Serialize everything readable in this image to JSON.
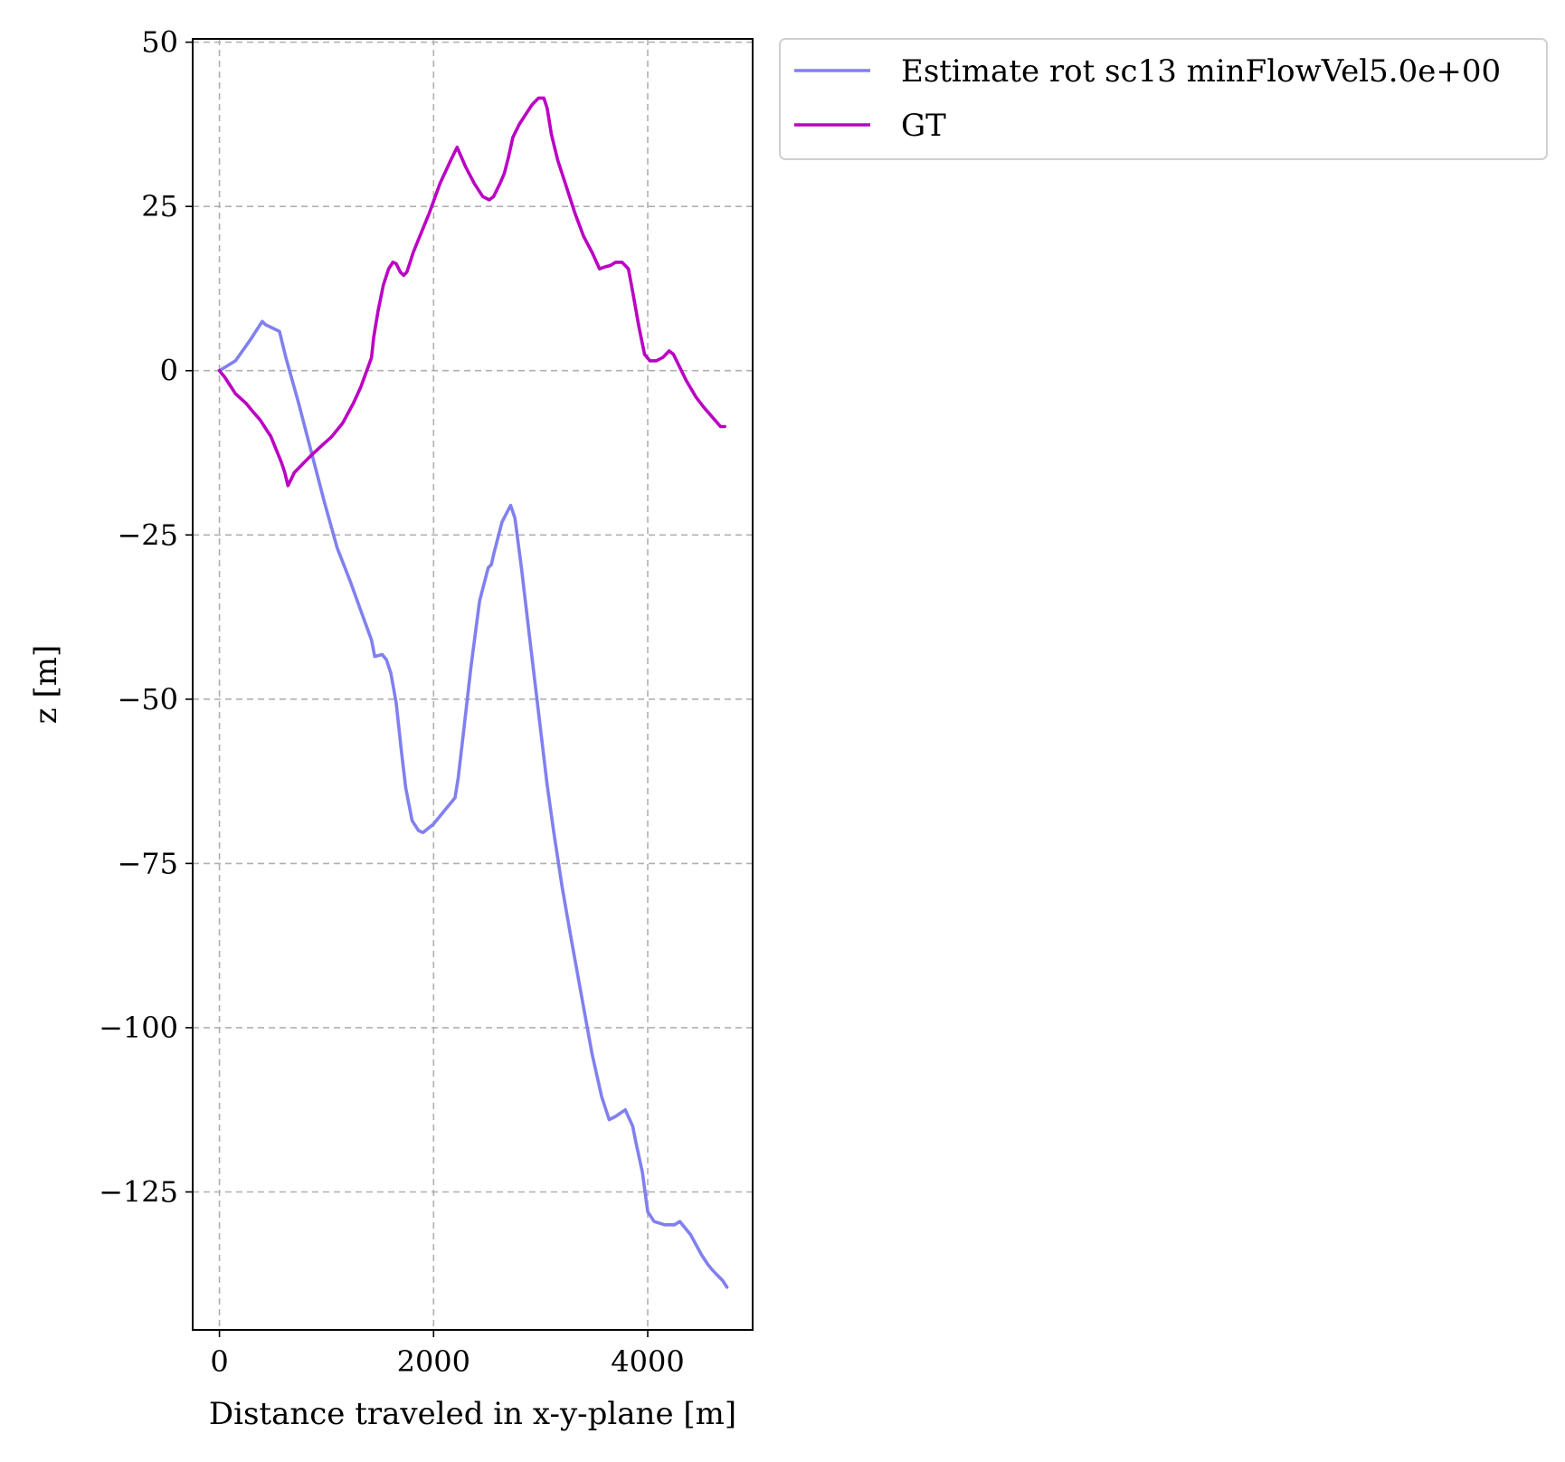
{
  "chart_data": {
    "type": "line",
    "xlabel": "Distance traveled in x-y-plane [m]",
    "ylabel": "z [m]",
    "xlim": [
      -250,
      4980
    ],
    "ylim": [
      -146,
      50.5
    ],
    "xticks": [
      0,
      2000,
      4000
    ],
    "xtick_labels": [
      "0",
      "2000",
      "4000"
    ],
    "yticks": [
      50,
      25,
      0,
      -25,
      -50,
      -75,
      -100,
      -125
    ],
    "ytick_labels": [
      "50",
      "25",
      "0",
      "−25",
      "−50",
      "−75",
      "−100",
      "−125"
    ],
    "grid": true,
    "legend_position": "outside-top-right",
    "series": [
      {
        "name": "Estimate rot sc13 minFlowVel5.0e+00",
        "color": "#8080f0",
        "x": [
          0,
          150,
          280,
          400,
          430,
          560,
          620,
          740,
          860,
          980,
          1100,
          1220,
          1320,
          1420,
          1450,
          1520,
          1560,
          1600,
          1650,
          1700,
          1740,
          1800,
          1860,
          1900,
          1940,
          2000,
          2100,
          2200,
          2230,
          2280,
          2350,
          2430,
          2510,
          2540,
          2560,
          2640,
          2720,
          2760,
          2820,
          2900,
          2980,
          3060,
          3120,
          3200,
          3280,
          3380,
          3480,
          3570,
          3640,
          3700,
          3790,
          3860,
          3890,
          3950,
          4000,
          4060,
          4160,
          4250,
          4300,
          4350,
          4400,
          4450,
          4500,
          4560,
          4600,
          4640,
          4700,
          4740
        ],
        "y": [
          0,
          1.5,
          4.5,
          7.5,
          7,
          6,
          2,
          -5,
          -12.5,
          -20,
          -27,
          -32,
          -36.5,
          -41,
          -43.5,
          -43.2,
          -44,
          -46,
          -50.5,
          -58,
          -63.5,
          -68.5,
          -70,
          -70.3,
          -69.8,
          -69,
          -67,
          -65,
          -62,
          -55,
          -45,
          -35,
          -30,
          -29.5,
          -28,
          -23,
          -20.5,
          -22.5,
          -30,
          -41,
          -52,
          -63,
          -70,
          -78.5,
          -86,
          -95,
          -104,
          -110.5,
          -114,
          -113.5,
          -112.5,
          -115,
          -117.5,
          -122,
          -128,
          -129.5,
          -130,
          -130,
          -129.5,
          -130.5,
          -131.5,
          -133,
          -134.5,
          -136,
          -136.8,
          -137.5,
          -138.5,
          -139.5
        ]
      },
      {
        "name": "GT",
        "color": "#bb00c4",
        "x": [
          0,
          50,
          150,
          250,
          300,
          380,
          420,
          480,
          530,
          580,
          610,
          640,
          670,
          700,
          760,
          850,
          950,
          1050,
          1150,
          1250,
          1320,
          1420,
          1440,
          1480,
          1530,
          1580,
          1620,
          1650,
          1690,
          1720,
          1750,
          1780,
          1810,
          1860,
          1960,
          2060,
          2160,
          2220,
          2300,
          2380,
          2460,
          2520,
          2560,
          2620,
          2660,
          2700,
          2740,
          2800,
          2860,
          2920,
          2980,
          3030,
          3060,
          3100,
          3160,
          3240,
          3320,
          3400,
          3480,
          3550,
          3600,
          3650,
          3700,
          3760,
          3820,
          3860,
          3920,
          3970,
          4020,
          4080,
          4140,
          4200,
          4240,
          4300,
          4360,
          4450,
          4520,
          4600,
          4680,
          4720
        ],
        "y": [
          0,
          -1,
          -3.5,
          -5,
          -6,
          -7.5,
          -8.5,
          -10,
          -12,
          -14,
          -15.5,
          -17.5,
          -16.5,
          -15.5,
          -14.5,
          -13,
          -11.5,
          -10,
          -8,
          -5,
          -2.5,
          2,
          5,
          9,
          13,
          15.5,
          16.5,
          16.3,
          15,
          14.5,
          15,
          16.5,
          18,
          20,
          24,
          28.5,
          32,
          34,
          31,
          28.5,
          26.5,
          26,
          26.5,
          28.5,
          30,
          32.5,
          35.5,
          37.5,
          39,
          40.5,
          41.5,
          41.5,
          40,
          36,
          32,
          28,
          24,
          20.5,
          18,
          15.5,
          15.8,
          16,
          16.5,
          16.5,
          15.5,
          12,
          6.5,
          2.5,
          1.5,
          1.5,
          2,
          3,
          2.5,
          0.5,
          -1.5,
          -4,
          -5.5,
          -7,
          -8.5,
          -8.5
        ]
      }
    ]
  }
}
